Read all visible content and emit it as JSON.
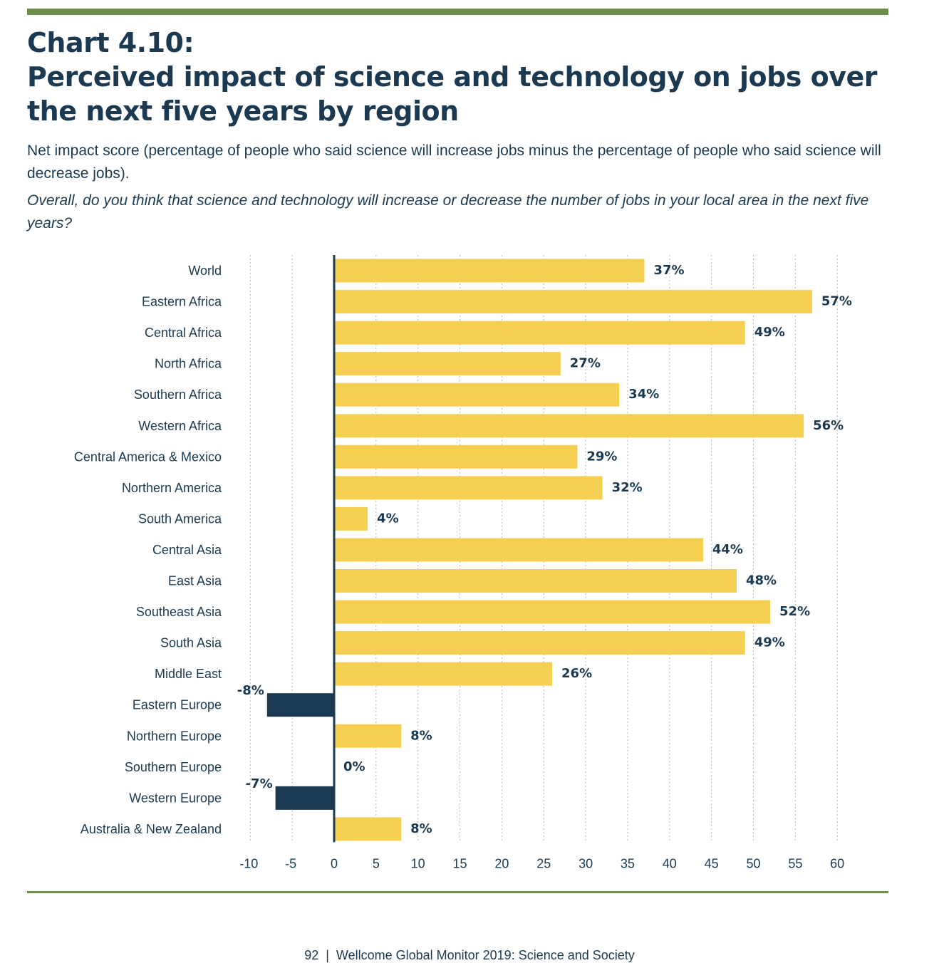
{
  "header": {
    "title_line1": "Chart 4.10:",
    "title_line2": "Perceived impact of science and technology on jobs over",
    "title_line3": "the next five years by region",
    "subtitle": "Net impact score (percentage of people who said science will increase jobs minus the percentage of people who said science will decrease jobs).",
    "question": "Overall, do you think that science and technology will increase or decrease the number of jobs in your local area in the next five years?"
  },
  "footer": {
    "page_number": "92",
    "separator": "|",
    "publication": "Wellcome Global Monitor 2019: Science and Society"
  },
  "colors": {
    "accent_rule": "#6f8c4b",
    "positive_bar": "#f5cf52",
    "negative_bar": "#1b3a52",
    "text": "#1b3a52",
    "gridline": "#b5b5b5"
  },
  "chart_data": {
    "type": "bar",
    "orientation": "horizontal",
    "categories": [
      "World",
      "Eastern Africa",
      "Central Africa",
      "North Africa",
      "Southern Africa",
      "Western Africa",
      "Central America & Mexico",
      "Northern America",
      "South America",
      "Central Asia",
      "East Asia",
      "Southeast Asia",
      "South Asia",
      "Middle East",
      "Eastern Europe",
      "Northern Europe",
      "Southern Europe",
      "Western Europe",
      "Australia & New Zealand"
    ],
    "values": [
      37,
      57,
      49,
      27,
      34,
      56,
      29,
      32,
      4,
      44,
      48,
      52,
      49,
      26,
      -8,
      8,
      0,
      -7,
      8
    ],
    "data_labels": [
      "37%",
      "57%",
      "49%",
      "27%",
      "34%",
      "56%",
      "29%",
      "32%",
      "4%",
      "44%",
      "48%",
      "52%",
      "49%",
      "26%",
      "-8%",
      "8%",
      "0%",
      "-7%",
      "8%"
    ],
    "xlim": [
      -10,
      60
    ],
    "xticks": [
      -10,
      -5,
      0,
      5,
      10,
      15,
      20,
      25,
      30,
      35,
      40,
      45,
      50,
      55,
      60
    ],
    "xtick_labels": [
      "-10",
      "-5",
      "0",
      "5",
      "10",
      "15",
      "20",
      "25",
      "30",
      "35",
      "40",
      "45",
      "50",
      "55",
      "60"
    ],
    "grid": "vertical dotted",
    "legend": "none"
  }
}
